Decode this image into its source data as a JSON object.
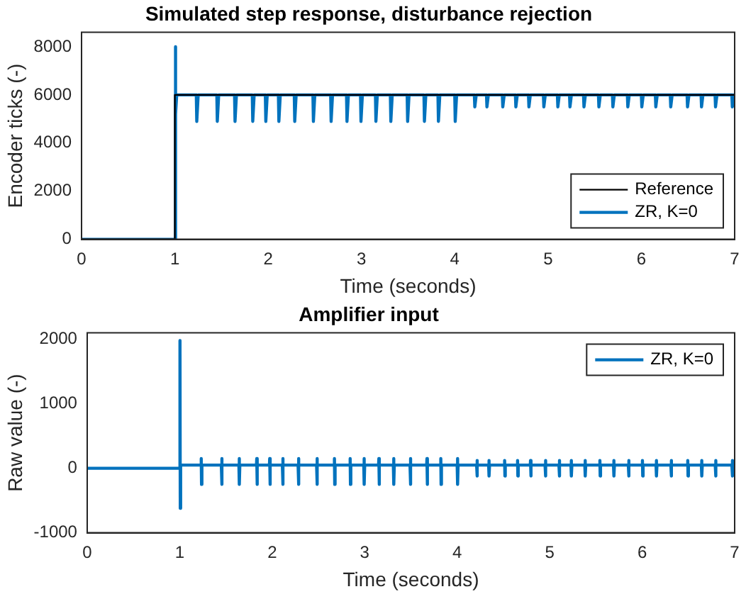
{
  "chart_data": [
    {
      "type": "line",
      "title": "Simulated step response, disturbance rejection",
      "xlabel": "Time (seconds)",
      "ylabel": "Encoder ticks (-)",
      "xlim": [
        0,
        7
      ],
      "xticks": [
        0,
        1,
        2,
        3,
        4,
        5,
        6,
        7
      ],
      "ylim": [
        0,
        8600
      ],
      "yticks": [
        0,
        2000,
        4000,
        6000,
        8000
      ],
      "grid": false,
      "legend": "bottom right",
      "marker": "none",
      "line_style": "solid",
      "series": [
        {
          "name": "Reference",
          "color": "#000000",
          "x": [
            0,
            1,
            1,
            7
          ],
          "values": [
            0,
            0,
            6000,
            6000
          ]
        },
        {
          "name": "ZR, K=0",
          "color": "#0072bd",
          "x": [
            0,
            1,
            1.005,
            1.01,
            1.02,
            1.23,
            1.235,
            1.25,
            1.45,
            1.455,
            1.47,
            1.64,
            1.645,
            1.66,
            1.83,
            1.835,
            1.85,
            1.97,
            1.975,
            1.99,
            2.11,
            2.115,
            2.13,
            2.28,
            2.285,
            2.3,
            2.48,
            2.485,
            2.5,
            2.67,
            2.675,
            2.69,
            2.84,
            2.845,
            2.86,
            2.99,
            2.995,
            3.01,
            3.15,
            3.155,
            3.17,
            3.31,
            3.315,
            3.33,
            3.49,
            3.495,
            3.51,
            3.67,
            3.675,
            3.69,
            3.82,
            3.825,
            3.84,
            4.0,
            4.005,
            4.02,
            4.21,
            4.215,
            4.23,
            4.34,
            4.345,
            4.36,
            4.51,
            4.515,
            4.53,
            4.65,
            4.655,
            4.67,
            4.79,
            4.795,
            4.81,
            4.95,
            4.955,
            4.97,
            5.1,
            5.105,
            5.12,
            5.23,
            5.235,
            5.25,
            5.38,
            5.385,
            5.4,
            5.54,
            5.545,
            5.56,
            5.69,
            5.695,
            5.71,
            5.85,
            5.855,
            5.87,
            6.0,
            6.005,
            6.02,
            6.15,
            6.155,
            6.17,
            6.31,
            6.315,
            6.33,
            6.49,
            6.495,
            6.51,
            6.64,
            6.645,
            6.66,
            6.79,
            6.795,
            6.81,
            6.97,
            6.975,
            6.99,
            7
          ],
          "values": [
            0,
            0,
            8000,
            5200,
            6000,
            6000,
            4900,
            6000,
            6000,
            4900,
            6000,
            6000,
            4900,
            6000,
            6000,
            4900,
            6000,
            6000,
            4900,
            6000,
            6000,
            4900,
            6000,
            6000,
            4900,
            6000,
            6000,
            4900,
            6000,
            6000,
            4900,
            6000,
            6000,
            4900,
            6000,
            6000,
            4900,
            6000,
            6000,
            4900,
            6000,
            6000,
            4900,
            6000,
            6000,
            4900,
            6000,
            6000,
            4900,
            6000,
            6000,
            4900,
            6000,
            6000,
            4900,
            6000,
            6000,
            5500,
            6000,
            6000,
            5500,
            6000,
            6000,
            5500,
            6000,
            6000,
            5500,
            6000,
            6000,
            5500,
            6000,
            6000,
            5500,
            6000,
            6000,
            5500,
            6000,
            6000,
            5500,
            6000,
            6000,
            5500,
            6000,
            6000,
            5500,
            6000,
            6000,
            5500,
            6000,
            6000,
            5500,
            6000,
            6000,
            5500,
            6000,
            6000,
            5500,
            6000,
            6000,
            5500,
            6000,
            6000,
            5500,
            6000,
            6000,
            5500,
            6000,
            6000,
            5500,
            6000,
            6000,
            5500,
            6000,
            6000
          ]
        }
      ]
    },
    {
      "type": "line",
      "title": "Amplifier input",
      "xlabel": "Time (seconds)",
      "ylabel": "Raw value (-)",
      "xlim": [
        0,
        7
      ],
      "xticks": [
        0,
        1,
        2,
        3,
        4,
        5,
        6,
        7
      ],
      "ylim": [
        -1000,
        2100
      ],
      "yticks": [
        -1000,
        0,
        1000,
        2000
      ],
      "grid": false,
      "legend": "top right",
      "marker": "none",
      "line_style": "solid",
      "series": [
        {
          "name": "ZR, K=0",
          "color": "#0072bd",
          "x": [
            0,
            1,
            1.003,
            1.006,
            1.01,
            1.23,
            1.233,
            1.236,
            1.24,
            1.45,
            1.453,
            1.456,
            1.46,
            1.64,
            1.643,
            1.646,
            1.65,
            1.83,
            1.833,
            1.836,
            1.84,
            1.97,
            1.973,
            1.976,
            1.98,
            2.11,
            2.113,
            2.116,
            2.12,
            2.28,
            2.283,
            2.286,
            2.29,
            2.48,
            2.483,
            2.486,
            2.49,
            2.67,
            2.673,
            2.676,
            2.68,
            2.84,
            2.843,
            2.846,
            2.85,
            2.99,
            2.993,
            2.996,
            3.0,
            3.15,
            3.153,
            3.156,
            3.16,
            3.31,
            3.313,
            3.316,
            3.32,
            3.49,
            3.493,
            3.496,
            3.5,
            3.67,
            3.673,
            3.676,
            3.68,
            3.82,
            3.823,
            3.826,
            3.83,
            4.0,
            4.003,
            4.006,
            4.01,
            4.21,
            4.213,
            4.216,
            4.22,
            4.34,
            4.343,
            4.346,
            4.35,
            4.51,
            4.513,
            4.516,
            4.52,
            4.65,
            4.653,
            4.656,
            4.66,
            4.79,
            4.793,
            4.796,
            4.8,
            4.95,
            4.953,
            4.956,
            4.96,
            5.1,
            5.103,
            5.106,
            5.11,
            5.23,
            5.233,
            5.236,
            5.24,
            5.38,
            5.383,
            5.386,
            5.39,
            5.54,
            5.543,
            5.546,
            5.55,
            5.69,
            5.693,
            5.696,
            5.7,
            5.85,
            5.853,
            5.856,
            5.86,
            6.0,
            6.003,
            6.006,
            6.01,
            6.15,
            6.153,
            6.156,
            6.16,
            6.31,
            6.313,
            6.316,
            6.32,
            6.49,
            6.493,
            6.496,
            6.5,
            6.64,
            6.643,
            6.646,
            6.65,
            6.79,
            6.793,
            6.796,
            6.8,
            6.97,
            6.973,
            6.976,
            6.98,
            7
          ],
          "values": [
            0,
            0,
            1980,
            -620,
            50,
            50,
            150,
            -250,
            50,
            50,
            150,
            -250,
            50,
            50,
            150,
            -250,
            50,
            50,
            150,
            -250,
            50,
            50,
            150,
            -250,
            50,
            50,
            150,
            -250,
            50,
            50,
            150,
            -250,
            50,
            50,
            150,
            -250,
            50,
            50,
            150,
            -250,
            50,
            50,
            150,
            -250,
            50,
            50,
            150,
            -250,
            50,
            50,
            150,
            -250,
            50,
            50,
            150,
            -250,
            50,
            50,
            150,
            -250,
            50,
            50,
            150,
            -250,
            50,
            50,
            150,
            -250,
            50,
            50,
            150,
            -250,
            50,
            50,
            120,
            -120,
            50,
            50,
            120,
            -120,
            50,
            50,
            120,
            -120,
            50,
            50,
            120,
            -120,
            50,
            50,
            120,
            -120,
            50,
            50,
            120,
            -120,
            50,
            50,
            120,
            -120,
            50,
            50,
            120,
            -120,
            50,
            50,
            120,
            -120,
            50,
            50,
            120,
            -120,
            50,
            50,
            120,
            -120,
            50,
            50,
            120,
            -120,
            50,
            50,
            120,
            -120,
            50,
            50,
            120,
            -120,
            50,
            50,
            120,
            -120,
            50,
            50,
            120,
            -120,
            50,
            50,
            120,
            -120,
            50,
            50,
            120,
            -120,
            50,
            50,
            120,
            -120,
            50,
            50
          ]
        }
      ]
    }
  ]
}
